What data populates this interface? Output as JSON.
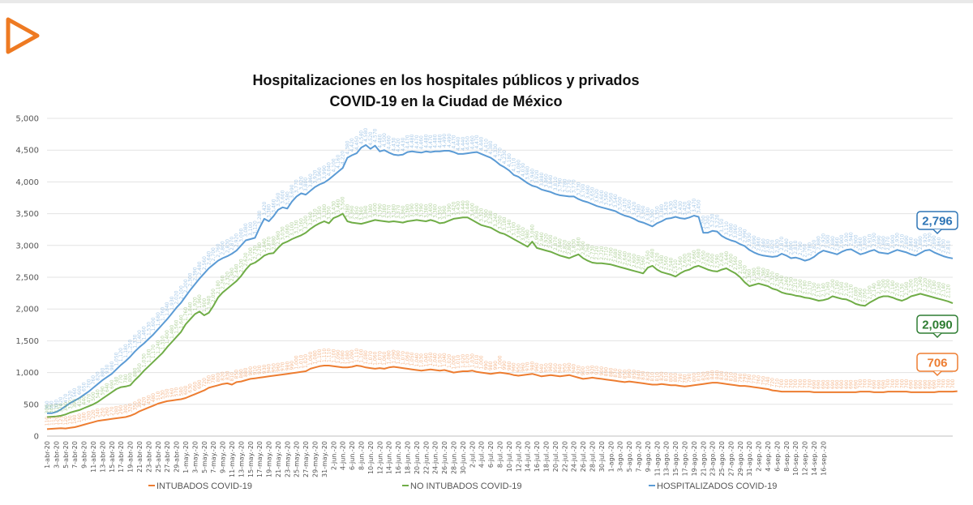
{
  "page": {
    "logo_icon": "play-triangle-icon",
    "logo_color": "#ee7a22"
  },
  "chart_data": {
    "type": "line",
    "title_lines": [
      "Hospitalizaciones en los hospitales públicos y privados",
      "COVID-19 en la Ciudad de México"
    ],
    "xlabel": "",
    "ylabel": "",
    "ylim": [
      0,
      5000
    ],
    "yticks": [
      "0",
      "500",
      "1,000",
      "1,500",
      "2,000",
      "2,500",
      "3,000",
      "3,500",
      "4,000",
      "4,500",
      "5,000"
    ],
    "ytick_values": [
      0,
      500,
      1000,
      1500,
      2000,
      2500,
      3000,
      3500,
      4000,
      4500,
      5000
    ],
    "grid": true,
    "legend_position": "bottom",
    "x_start": "1-abr-20",
    "x_end": "16-sep-20",
    "xtick_labels": [
      "1-abr-20",
      "3-abr-20",
      "5-abr-20",
      "7-abr-20",
      "9-abr-20",
      "11-abr-20",
      "13-abr-20",
      "15-abr-20",
      "17-abr-20",
      "19-abr-20",
      "21-abr-20",
      "23-abr-20",
      "25-abr-20",
      "27-abr-20",
      "29-abr-20",
      "1-may.-20",
      "3-may.-20",
      "5-may.-20",
      "7-may.-20",
      "9-may.-20",
      "11-may.-20",
      "13-may.-20",
      "15-may.-20",
      "17-may.-20",
      "19-may.-20",
      "21-may.-20",
      "23-may.-20",
      "25-may.-20",
      "27-may.-20",
      "29-may.-20",
      "31-may.-20",
      "2-jun.-20",
      "4-jun.-20",
      "6-jun.-20",
      "8-jun.-20",
      "10-jun.-20",
      "12-jun.-20",
      "14-jun.-20",
      "16-jun.-20",
      "18-jun.-20",
      "20-jun.-20",
      "22-jun.-20",
      "24-jun.-20",
      "26-jun.-20",
      "28-jun.-20",
      "30-jun.-20",
      "2-jul.-20",
      "4-jul.-20",
      "6-jul.-20",
      "8-jul.-20",
      "10-jul.-20",
      "12-jul.-20",
      "14-jul.-20",
      "16-jul.-20",
      "18-jul.-20",
      "20-jul.-20",
      "22-jul.-20",
      "24-jul.-20",
      "26-jul.-20",
      "28-jul.-20",
      "30-jul.-20",
      "1-ago.-20",
      "3-ago.-20",
      "5-ago.-20",
      "7-ago.-20",
      "9-ago.-20",
      "11-ago.-20",
      "13-ago.-20",
      "15-ago.-20",
      "17-ago.-20",
      "19-ago.-20",
      "21-ago.-20",
      "23-ago.-20",
      "25-ago.-20",
      "27-ago.-20",
      "29-ago.-20",
      "31-ago.-20",
      "2-sep.-20",
      "4-sep.-20",
      "6-sep.-20",
      "8-sep.-20",
      "10-sep.-20",
      "12-sep.-20",
      "14-sep.-20",
      "16-sep.-20"
    ],
    "series": [
      {
        "name": "HOSPITALIZADOS COVID-19",
        "color": "#5b9bd5",
        "final_label": "2,796",
        "values": [
          360,
          360,
          380,
          420,
          470,
          520,
          560,
          600,
          650,
          700,
          760,
          820,
          880,
          930,
          980,
          1050,
          1120,
          1180,
          1250,
          1330,
          1400,
          1460,
          1530,
          1600,
          1680,
          1760,
          1840,
          1930,
          2020,
          2100,
          2200,
          2300,
          2390,
          2480,
          2560,
          2640,
          2700,
          2760,
          2800,
          2830,
          2870,
          2920,
          3000,
          3080,
          3100,
          3120,
          3280,
          3420,
          3380,
          3460,
          3560,
          3600,
          3580,
          3690,
          3770,
          3820,
          3800,
          3860,
          3920,
          3960,
          3990,
          4040,
          4100,
          4160,
          4220,
          4380,
          4420,
          4450,
          4540,
          4580,
          4520,
          4570,
          4480,
          4500,
          4460,
          4430,
          4420,
          4430,
          4470,
          4480,
          4470,
          4460,
          4480,
          4470,
          4480,
          4480,
          4490,
          4490,
          4470,
          4440,
          4440,
          4450,
          4460,
          4470,
          4440,
          4410,
          4380,
          4330,
          4270,
          4230,
          4180,
          4110,
          4080,
          4030,
          3980,
          3940,
          3920,
          3880,
          3860,
          3840,
          3810,
          3790,
          3780,
          3770,
          3770,
          3730,
          3700,
          3680,
          3650,
          3620,
          3600,
          3580,
          3560,
          3540,
          3500,
          3470,
          3450,
          3420,
          3380,
          3360,
          3330,
          3300,
          3350,
          3380,
          3420,
          3430,
          3450,
          3430,
          3420,
          3440,
          3470,
          3450,
          3200,
          3200,
          3230,
          3220,
          3150,
          3110,
          3080,
          3060,
          3020,
          2990,
          2930,
          2890,
          2860,
          2840,
          2830,
          2820,
          2830,
          2870,
          2840,
          2800,
          2810,
          2790,
          2760,
          2780,
          2820,
          2880,
          2920,
          2900,
          2880,
          2860,
          2900,
          2930,
          2940,
          2900,
          2860,
          2880,
          2910,
          2930,
          2890,
          2880,
          2870,
          2900,
          2930,
          2910,
          2890,
          2860,
          2840,
          2880,
          2920,
          2930,
          2890,
          2860,
          2830,
          2810,
          2796
        ]
      },
      {
        "name": "NO INTUBADOS COVID-19",
        "color": "#70ad47",
        "final_label": "2,090",
        "values": [
          300,
          305,
          310,
          320,
          340,
          370,
          390,
          410,
          440,
          470,
          500,
          540,
          590,
          640,
          690,
          740,
          770,
          780,
          800,
          880,
          950,
          1030,
          1100,
          1170,
          1240,
          1310,
          1400,
          1480,
          1560,
          1640,
          1760,
          1840,
          1920,
          1960,
          1900,
          1940,
          2050,
          2180,
          2260,
          2320,
          2380,
          2440,
          2520,
          2620,
          2700,
          2730,
          2780,
          2840,
          2870,
          2880,
          2960,
          3030,
          3060,
          3100,
          3130,
          3160,
          3200,
          3260,
          3310,
          3350,
          3380,
          3350,
          3430,
          3460,
          3500,
          3380,
          3360,
          3350,
          3340,
          3360,
          3380,
          3400,
          3390,
          3380,
          3370,
          3380,
          3370,
          3360,
          3380,
          3390,
          3400,
          3390,
          3380,
          3400,
          3380,
          3350,
          3360,
          3390,
          3420,
          3430,
          3440,
          3440,
          3400,
          3360,
          3320,
          3300,
          3280,
          3240,
          3200,
          3180,
          3140,
          3100,
          3060,
          3020,
          2980,
          3060,
          2960,
          2940,
          2920,
          2900,
          2870,
          2840,
          2820,
          2800,
          2830,
          2860,
          2800,
          2760,
          2730,
          2720,
          2720,
          2710,
          2700,
          2680,
          2660,
          2640,
          2620,
          2600,
          2580,
          2560,
          2650,
          2680,
          2620,
          2580,
          2560,
          2540,
          2510,
          2560,
          2600,
          2620,
          2660,
          2680,
          2650,
          2620,
          2600,
          2590,
          2620,
          2640,
          2600,
          2560,
          2500,
          2420,
          2360,
          2380,
          2400,
          2380,
          2360,
          2320,
          2300,
          2260,
          2240,
          2230,
          2210,
          2200,
          2180,
          2170,
          2150,
          2130,
          2140,
          2160,
          2200,
          2180,
          2160,
          2150,
          2120,
          2080,
          2060,
          2050,
          2100,
          2140,
          2180,
          2200,
          2200,
          2180,
          2150,
          2130,
          2160,
          2200,
          2220,
          2240,
          2220,
          2200,
          2180,
          2160,
          2140,
          2120,
          2090
        ]
      },
      {
        "name": "INTUBADOS COVID-19",
        "color": "#ed7d31",
        "final_label": "706",
        "values": [
          110,
          115,
          120,
          125,
          120,
          130,
          140,
          160,
          180,
          200,
          220,
          240,
          250,
          260,
          270,
          280,
          290,
          300,
          320,
          350,
          390,
          420,
          450,
          480,
          510,
          530,
          550,
          560,
          570,
          580,
          600,
          630,
          660,
          690,
          720,
          760,
          780,
          800,
          820,
          830,
          810,
          850,
          860,
          880,
          900,
          910,
          920,
          930,
          940,
          950,
          960,
          970,
          980,
          990,
          1000,
          1010,
          1020,
          1060,
          1080,
          1100,
          1110,
          1110,
          1100,
          1090,
          1080,
          1080,
          1090,
          1110,
          1100,
          1080,
          1070,
          1060,
          1070,
          1060,
          1080,
          1090,
          1080,
          1070,
          1060,
          1050,
          1040,
          1030,
          1040,
          1050,
          1040,
          1030,
          1040,
          1020,
          1000,
          1010,
          1020,
          1020,
          1030,
          1010,
          1000,
          990,
          980,
          990,
          1000,
          990,
          980,
          960,
          950,
          960,
          970,
          980,
          960,
          940,
          950,
          960,
          950,
          940,
          950,
          960,
          940,
          920,
          900,
          910,
          920,
          910,
          900,
          890,
          880,
          870,
          860,
          850,
          860,
          850,
          840,
          830,
          820,
          810,
          810,
          820,
          810,
          800,
          800,
          790,
          780,
          790,
          800,
          810,
          820,
          830,
          840,
          840,
          830,
          820,
          810,
          800,
          790,
          790,
          780,
          770,
          760,
          750,
          740,
          720,
          710,
          700,
          700,
          700,
          700,
          700,
          700,
          700,
          690,
          690,
          690,
          690,
          690,
          690,
          690,
          690,
          690,
          690,
          700,
          700,
          700,
          690,
          690,
          690,
          700,
          700,
          700,
          700,
          700,
          690,
          690,
          690,
          690,
          690,
          690,
          700,
          700,
          700,
          700,
          706
        ]
      }
    ]
  }
}
